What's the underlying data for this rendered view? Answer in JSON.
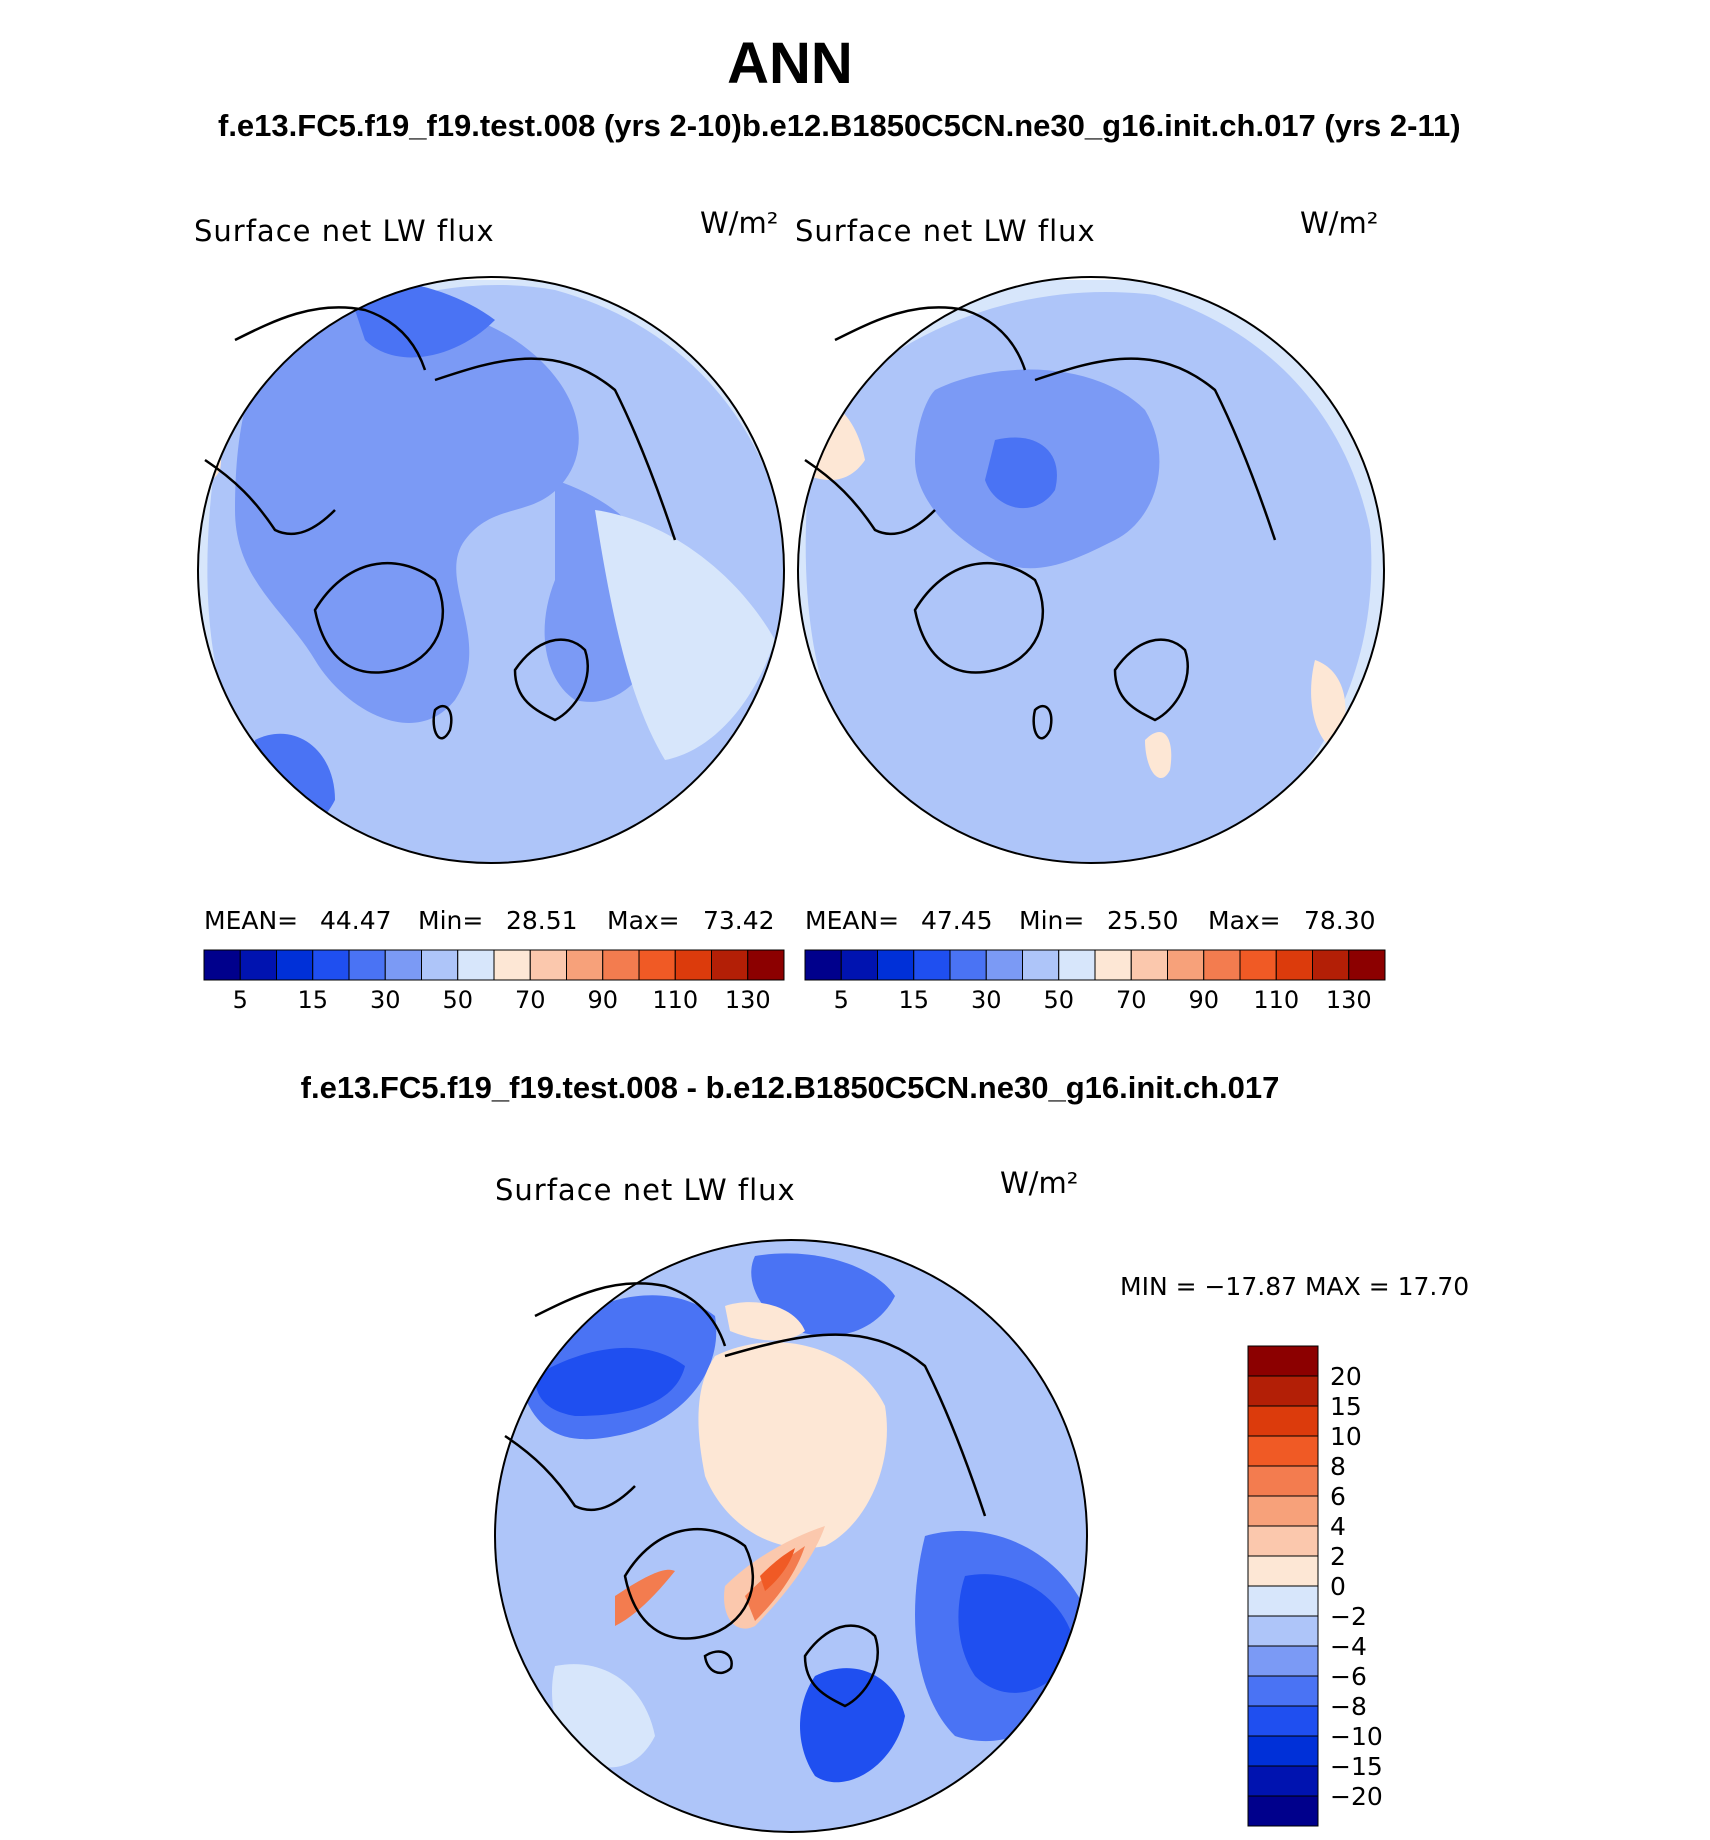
{
  "header": {
    "title": "ANN",
    "left_case": "f.e13.FC5.f19_f19.test.008 (yrs 2-10)",
    "right_case": "b.e12.B1850C5CN.ne30_g16.init.ch.017 (yrs 2-11)",
    "diff_title": "f.e13.FC5.f19_f19.test.008 - b.e12.B1850C5CN.ne30_g16.init.ch.017"
  },
  "panels": {
    "left": {
      "variable": "Surface net LW flux",
      "units": "W/m²",
      "stats": {
        "mean_label": "MEAN=",
        "mean": "44.47",
        "min_label": "Min=",
        "min": "28.51",
        "max_label": "Max=",
        "max": "73.42"
      }
    },
    "right": {
      "variable": "Surface net LW flux",
      "units": "W/m²",
      "stats": {
        "mean_label": "MEAN=",
        "mean": "47.45",
        "min_label": "Min=",
        "min": "25.50",
        "max_label": "Max=",
        "max": "78.30"
      }
    },
    "diff": {
      "variable": "Surface net LW flux",
      "units": "W/m²",
      "minmax": "MIN = −17.87 MAX =   17.70"
    }
  },
  "colorbars": {
    "abs_colors": [
      "#00008c",
      "#0013b0",
      "#0030d8",
      "#1f4ff0",
      "#4a73f4",
      "#7b9af5",
      "#aec5f9",
      "#d7e6fb",
      "#fde7d5",
      "#fbc8ad",
      "#f7a17a",
      "#f37c4f",
      "#f05a25",
      "#dc3b0c",
      "#b31f06",
      "#8c0000"
    ],
    "abs_ticks": [
      "5",
      "15",
      "30",
      "50",
      "70",
      "90",
      "110",
      "130"
    ],
    "diff_colors": [
      "#00008c",
      "#0013b0",
      "#0030d8",
      "#1f4ff0",
      "#4a73f4",
      "#7b9af5",
      "#aec5f9",
      "#d7e6fb",
      "#fde7d5",
      "#fbc8ad",
      "#f7a17a",
      "#f37c4f",
      "#f05a25",
      "#dc3b0c",
      "#b31f06",
      "#8c0000"
    ],
    "diff_ticks": [
      "20",
      "15",
      "10",
      "8",
      "6",
      "4",
      "2",
      "0",
      "−2",
      "−4",
      "−6",
      "−8",
      "−10",
      "−15",
      "−20"
    ]
  },
  "map_colors": {
    "pale_blue": "#d7e6fb",
    "light_blue": "#aec5f9",
    "mid_blue": "#7b9af5",
    "blue": "#4a73f4",
    "deep_blue": "#1f4ff0",
    "darker_blue": "#0030d8",
    "peach": "#fde7d5",
    "salmon": "#fbc8ad",
    "orange": "#f37c4f",
    "red_orange": "#f05a25"
  }
}
